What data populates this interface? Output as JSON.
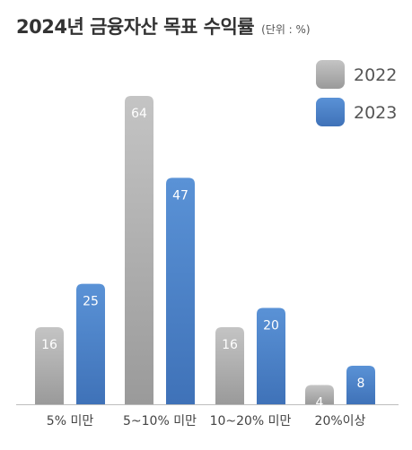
{
  "header": {
    "title": "2024년 금융자산 목표 수익률",
    "unit": "(단위 : %)"
  },
  "chart_data": {
    "type": "bar",
    "categories": [
      "5% 미만",
      "5~10% 미만",
      "10~20% 미만",
      "20%이상"
    ],
    "series": [
      {
        "name": "2022",
        "values": [
          16,
          64,
          16,
          4
        ],
        "color": "#b0b0b0"
      },
      {
        "name": "2023",
        "values": [
          25,
          47,
          20,
          8
        ],
        "color": "#4f83c6"
      }
    ],
    "ylim": [
      0,
      64
    ],
    "grid": false,
    "legend": "top-right"
  }
}
